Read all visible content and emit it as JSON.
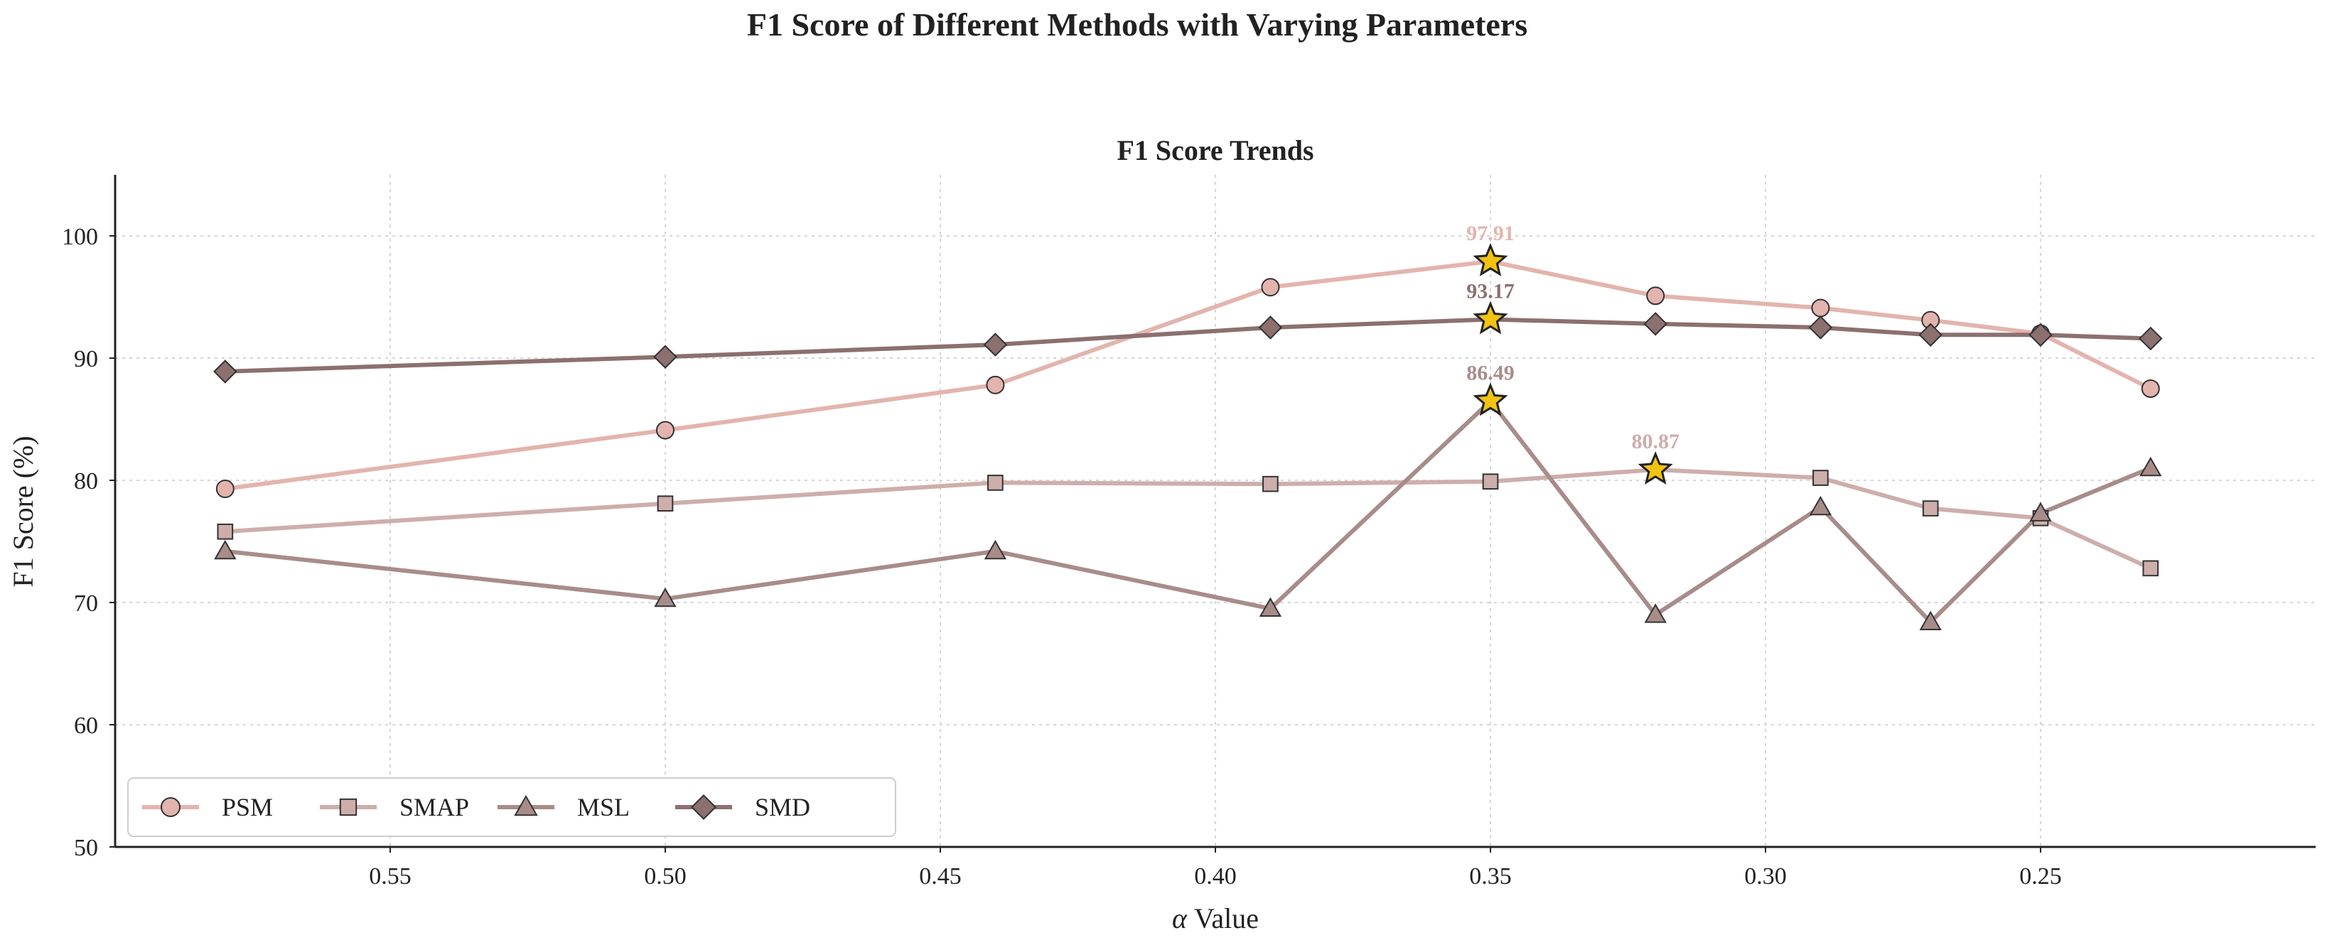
{
  "chart_data": {
    "type": "line",
    "suptitle": "F1 Score of Different Methods with Varying Parameters",
    "title": "F1 Score Trends",
    "xlabel_symbol": "α",
    "xlabel_text": " Value",
    "ylabel": "F1 Score (%)",
    "xlim": [
      0.6,
      0.2
    ],
    "ylim": [
      50,
      105
    ],
    "x": [
      0.58,
      0.5,
      0.44,
      0.39,
      0.35,
      0.32,
      0.29,
      0.27,
      0.25,
      0.23
    ],
    "x_ticks": [
      0.55,
      0.5,
      0.45,
      0.4,
      0.35,
      0.3,
      0.25
    ],
    "x_tick_labels": [
      "0.55",
      "0.50",
      "0.45",
      "0.40",
      "0.35",
      "0.30",
      "0.25"
    ],
    "y_ticks": [
      50,
      60,
      70,
      80,
      90,
      100
    ],
    "y_tick_labels": [
      "50",
      "60",
      "70",
      "80",
      "90",
      "100"
    ],
    "grid": true,
    "legend_position": "lower-left",
    "series": [
      {
        "name": "PSM",
        "marker": "circle",
        "color": "#e3b4ae",
        "values": [
          79.3,
          84.1,
          87.8,
          95.8,
          97.91,
          95.1,
          94.1,
          93.1,
          92.0,
          87.5
        ],
        "best_index": 4,
        "best_label": "97.91"
      },
      {
        "name": "SMAP",
        "marker": "square",
        "color": "#cdaeab",
        "values": [
          75.8,
          78.1,
          79.8,
          79.7,
          79.9,
          80.87,
          80.2,
          77.7,
          76.9,
          72.8
        ],
        "best_index": 5,
        "best_label": "80.87"
      },
      {
        "name": "MSL",
        "marker": "triangle",
        "color": "#a88c8a",
        "values": [
          74.2,
          70.3,
          74.2,
          69.5,
          86.49,
          69.0,
          77.8,
          68.4,
          77.3,
          81.0
        ],
        "best_index": 4,
        "best_label": "86.49"
      },
      {
        "name": "SMD",
        "marker": "diamond",
        "color": "#8b706f",
        "values": [
          88.9,
          90.1,
          91.1,
          92.5,
          93.17,
          92.8,
          92.5,
          91.9,
          91.9,
          91.6
        ],
        "best_index": 4,
        "best_label": "93.17"
      }
    ],
    "highlight_marker": {
      "shape": "star",
      "fill": "#f2c311",
      "stroke": "#222222"
    }
  }
}
